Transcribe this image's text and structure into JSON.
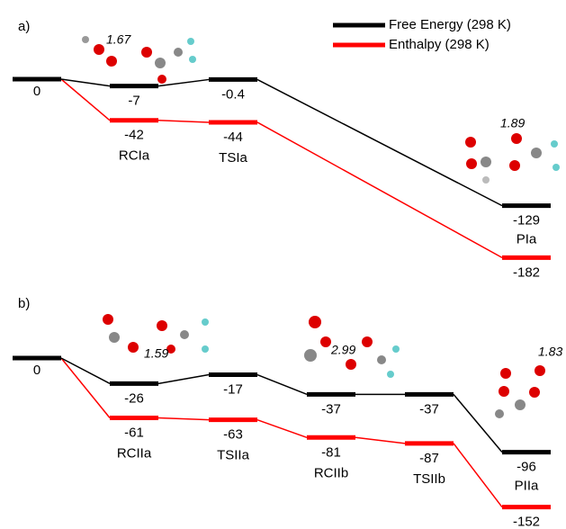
{
  "chart_data": [
    {
      "type": "energy-profile",
      "label": "a)",
      "categories": [
        null,
        "RCIa",
        "TSIa",
        "PIa"
      ],
      "series": [
        {
          "name": "Free Energy (298 K)",
          "color": "#000000",
          "values": [
            0,
            -7,
            -0.4,
            -129
          ]
        },
        {
          "name": "Enthalpy (298 K)",
          "color": "#ff0000",
          "values": [
            0,
            -42,
            -44,
            -182
          ]
        }
      ],
      "annotations": [
        "1.67",
        "1.89"
      ]
    },
    {
      "type": "energy-profile",
      "label": "b)",
      "categories": [
        null,
        "RCIIa",
        "TSIIa",
        "RCIIb",
        "TSIIb",
        "PIIa"
      ],
      "series": [
        {
          "name": "Free Energy (298 K)",
          "color": "#000000",
          "values": [
            0,
            -26,
            -17,
            -37,
            -37,
            -96
          ]
        },
        {
          "name": "Enthalpy (298 K)",
          "color": "#ff0000",
          "values": [
            0,
            -61,
            -63,
            -81,
            -87,
            -152
          ]
        }
      ],
      "annotations": [
        "1.59",
        "2.99",
        "1.83"
      ]
    }
  ]
}
